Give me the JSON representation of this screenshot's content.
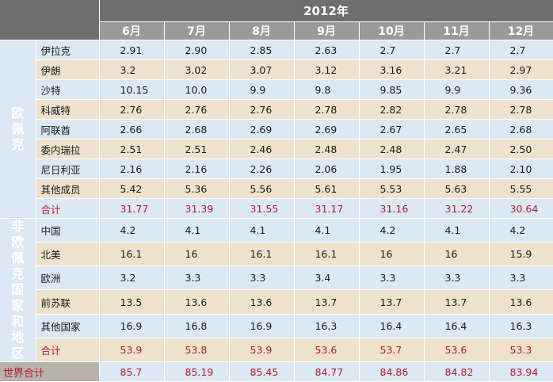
{
  "year": "2012年",
  "months": [
    "6月",
    "7月",
    "8月",
    "9月",
    "10月",
    "11月",
    "12月"
  ],
  "opec": {
    "label": "欧佩克",
    "rows": [
      {
        "name": "伊拉克",
        "values": [
          "2.91",
          "2.90",
          "2.85",
          "2.63",
          "2.7",
          "2.7",
          "2.7"
        ]
      },
      {
        "name": "伊朗",
        "values": [
          "3.2",
          "3.02",
          "3.07",
          "3.12",
          "3.16",
          "3.21",
          "2.97"
        ]
      },
      {
        "name": "沙特",
        "values": [
          "10.15",
          "10.0",
          "9.9",
          "9.8",
          "9.85",
          "9.9",
          "9.36"
        ]
      },
      {
        "name": "科威特",
        "values": [
          "2.76",
          "2.76",
          "2.76",
          "2.78",
          "2.82",
          "2.78",
          "2.78"
        ]
      },
      {
        "name": "阿联酋",
        "values": [
          "2.66",
          "2.68",
          "2.69",
          "2.69",
          "2.67",
          "2.65",
          "2.68"
        ]
      },
      {
        "name": "委内瑞拉",
        "values": [
          "2.51",
          "2.51",
          "2.46",
          "2.48",
          "2.48",
          "2.47",
          "2.50"
        ]
      },
      {
        "name": "尼日利亚",
        "values": [
          "2.16",
          "2.16",
          "2.26",
          "2.06",
          "1.95",
          "1.88",
          "2.10"
        ]
      },
      {
        "name": "其他成员",
        "values": [
          "5.42",
          "5.36",
          "5.56",
          "5.61",
          "5.53",
          "5.63",
          "5.55"
        ]
      }
    ],
    "total": {
      "name": "合计",
      "values": [
        "31.77",
        "31.39",
        "31.55",
        "31.17",
        "31.16",
        "31.22",
        "30.64"
      ]
    }
  },
  "non_opec": {
    "label": "非欧佩克国家和地区",
    "rows": [
      {
        "name": "中国",
        "values": [
          "4.2",
          "4.1",
          "4.1",
          "4.1",
          "4.2",
          "4.1",
          "4.2"
        ]
      },
      {
        "name": "北美",
        "values": [
          "16.1",
          "16",
          "16.1",
          "16.1",
          "16",
          "16",
          "15.9"
        ]
      },
      {
        "name": "欧洲",
        "values": [
          "3.2",
          "3.3",
          "3.3",
          "3.4",
          "3.3",
          "3.3",
          "3.3"
        ]
      },
      {
        "name": "前苏联",
        "values": [
          "13.5",
          "13.6",
          "13.6",
          "13.7",
          "13.7",
          "13.7",
          "13.6"
        ]
      },
      {
        "name": "其他国家",
        "values": [
          "16.9",
          "16.8",
          "16.9",
          "16.3",
          "16.4",
          "16.4",
          "16.3"
        ]
      }
    ],
    "total": {
      "name": "合计",
      "values": [
        "53.9",
        "53.8",
        "53.9",
        "53.6",
        "53.7",
        "53.6",
        "53.3"
      ]
    }
  },
  "world_total": {
    "name": "世界合计",
    "values": [
      "85.7",
      "85.19",
      "85.45",
      "84.77",
      "84.86",
      "84.82",
      "83.94"
    ]
  },
  "colors": {
    "header_dark": "#6f6f6f",
    "header_month": "#9a9a9a",
    "row_blue": "#dce9f4",
    "row_beige": "#efe2cd",
    "total_text": "#b5182d"
  }
}
